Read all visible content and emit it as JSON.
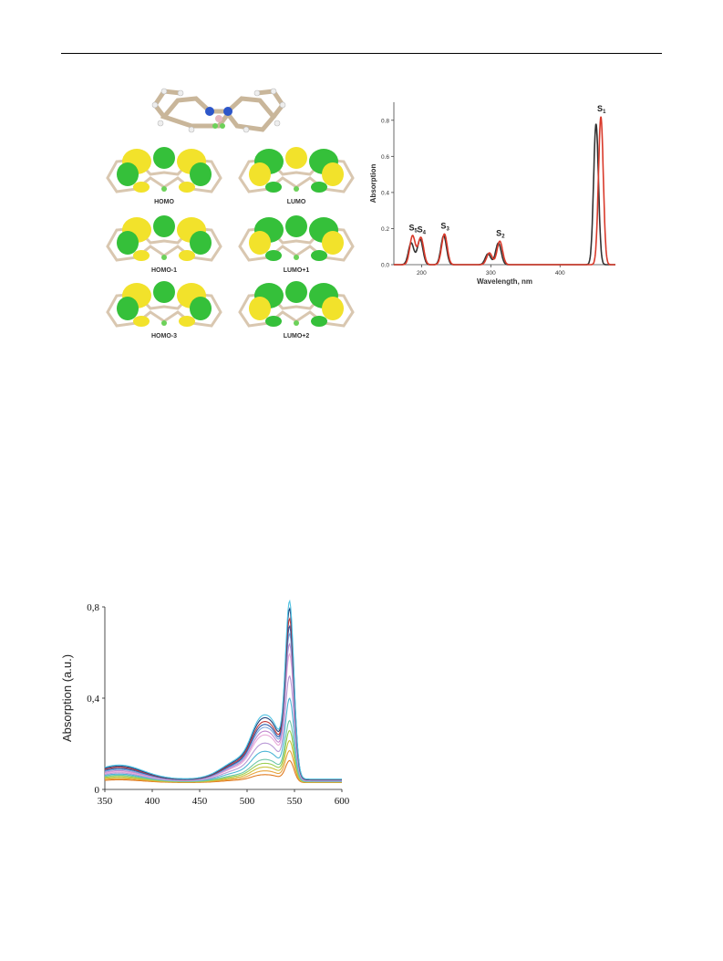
{
  "figure_top": {
    "orbital_labels": [
      "HOMO",
      "LUMO",
      "HOMO-1",
      "LUMO+1",
      "HOMO-3",
      "LUMO+2"
    ]
  },
  "colors": {
    "lobe_yellow": "#f2e22b",
    "lobe_green": "#35c03a",
    "frame": "#d9c7b0",
    "spectrum_black": "#333333",
    "spectrum_red": "#d93a2b"
  },
  "chart_data": [
    {
      "type": "line",
      "xlabel": "Wavelength, nm",
      "ylabel": "Absorption",
      "xlim": [
        160,
        480
      ],
      "ylim": [
        0,
        0.9
      ],
      "x_ticks": [
        "200",
        "300",
        "400"
      ],
      "y_ticks": [
        "0.0",
        "0.2",
        "0.4",
        "0.6",
        "0.8"
      ],
      "peak_labels": [
        "S5",
        "S4",
        "S3",
        "S2",
        "S1"
      ],
      "series": [
        {
          "color": "#333333",
          "peaks": [
            {
              "x": 185,
              "y": 0.12,
              "w": 4
            },
            {
              "x": 198,
              "y": 0.14,
              "w": 4
            },
            {
              "x": 232,
              "y": 0.16,
              "w": 4
            },
            {
              "x": 296,
              "y": 0.06,
              "w": 4
            },
            {
              "x": 311,
              "y": 0.12,
              "w": 4
            },
            {
              "x": 452,
              "y": 0.78,
              "w": 3.5
            }
          ]
        },
        {
          "color": "#d93a2b",
          "peaks": [
            {
              "x": 187,
              "y": 0.16,
              "w": 4
            },
            {
              "x": 199,
              "y": 0.15,
              "w": 4
            },
            {
              "x": 233,
              "y": 0.17,
              "w": 4
            },
            {
              "x": 298,
              "y": 0.065,
              "w": 4
            },
            {
              "x": 313,
              "y": 0.13,
              "w": 4
            },
            {
              "x": 459,
              "y": 0.82,
              "w": 3.5
            }
          ]
        }
      ]
    },
    {
      "type": "line",
      "xlabel": "",
      "ylabel": "Absorption (a.u.)",
      "xlim": [
        350,
        600
      ],
      "ylim": [
        0,
        0.8
      ],
      "x_ticks": [
        "350",
        "400",
        "450",
        "500",
        "550",
        "600"
      ],
      "y_ticks": [
        "0",
        "0,4",
        "0,8"
      ],
      "series": [
        {
          "color": "#e07b20",
          "peak": 0.09
        },
        {
          "color": "#e8a33a",
          "peak": 0.13
        },
        {
          "color": "#c9c23a",
          "peak": 0.17
        },
        {
          "color": "#9ccf53",
          "peak": 0.21
        },
        {
          "color": "#6fc7a8",
          "peak": 0.25
        },
        {
          "color": "#4fb6d6",
          "peak": 0.34
        },
        {
          "color": "#b99ad6",
          "peak": 0.43
        },
        {
          "color": "#e7a9d9",
          "peak": 0.52
        },
        {
          "color": "#c48ad0",
          "peak": 0.56
        },
        {
          "color": "#7aa8e0",
          "peak": 0.6
        },
        {
          "color": "#2b5aa8",
          "peak": 0.63
        },
        {
          "color": "#c23b3b",
          "peak": 0.66
        },
        {
          "color": "#1d3f7a",
          "peak": 0.7
        },
        {
          "color": "#53c3e3",
          "peak": 0.73
        }
      ]
    }
  ]
}
